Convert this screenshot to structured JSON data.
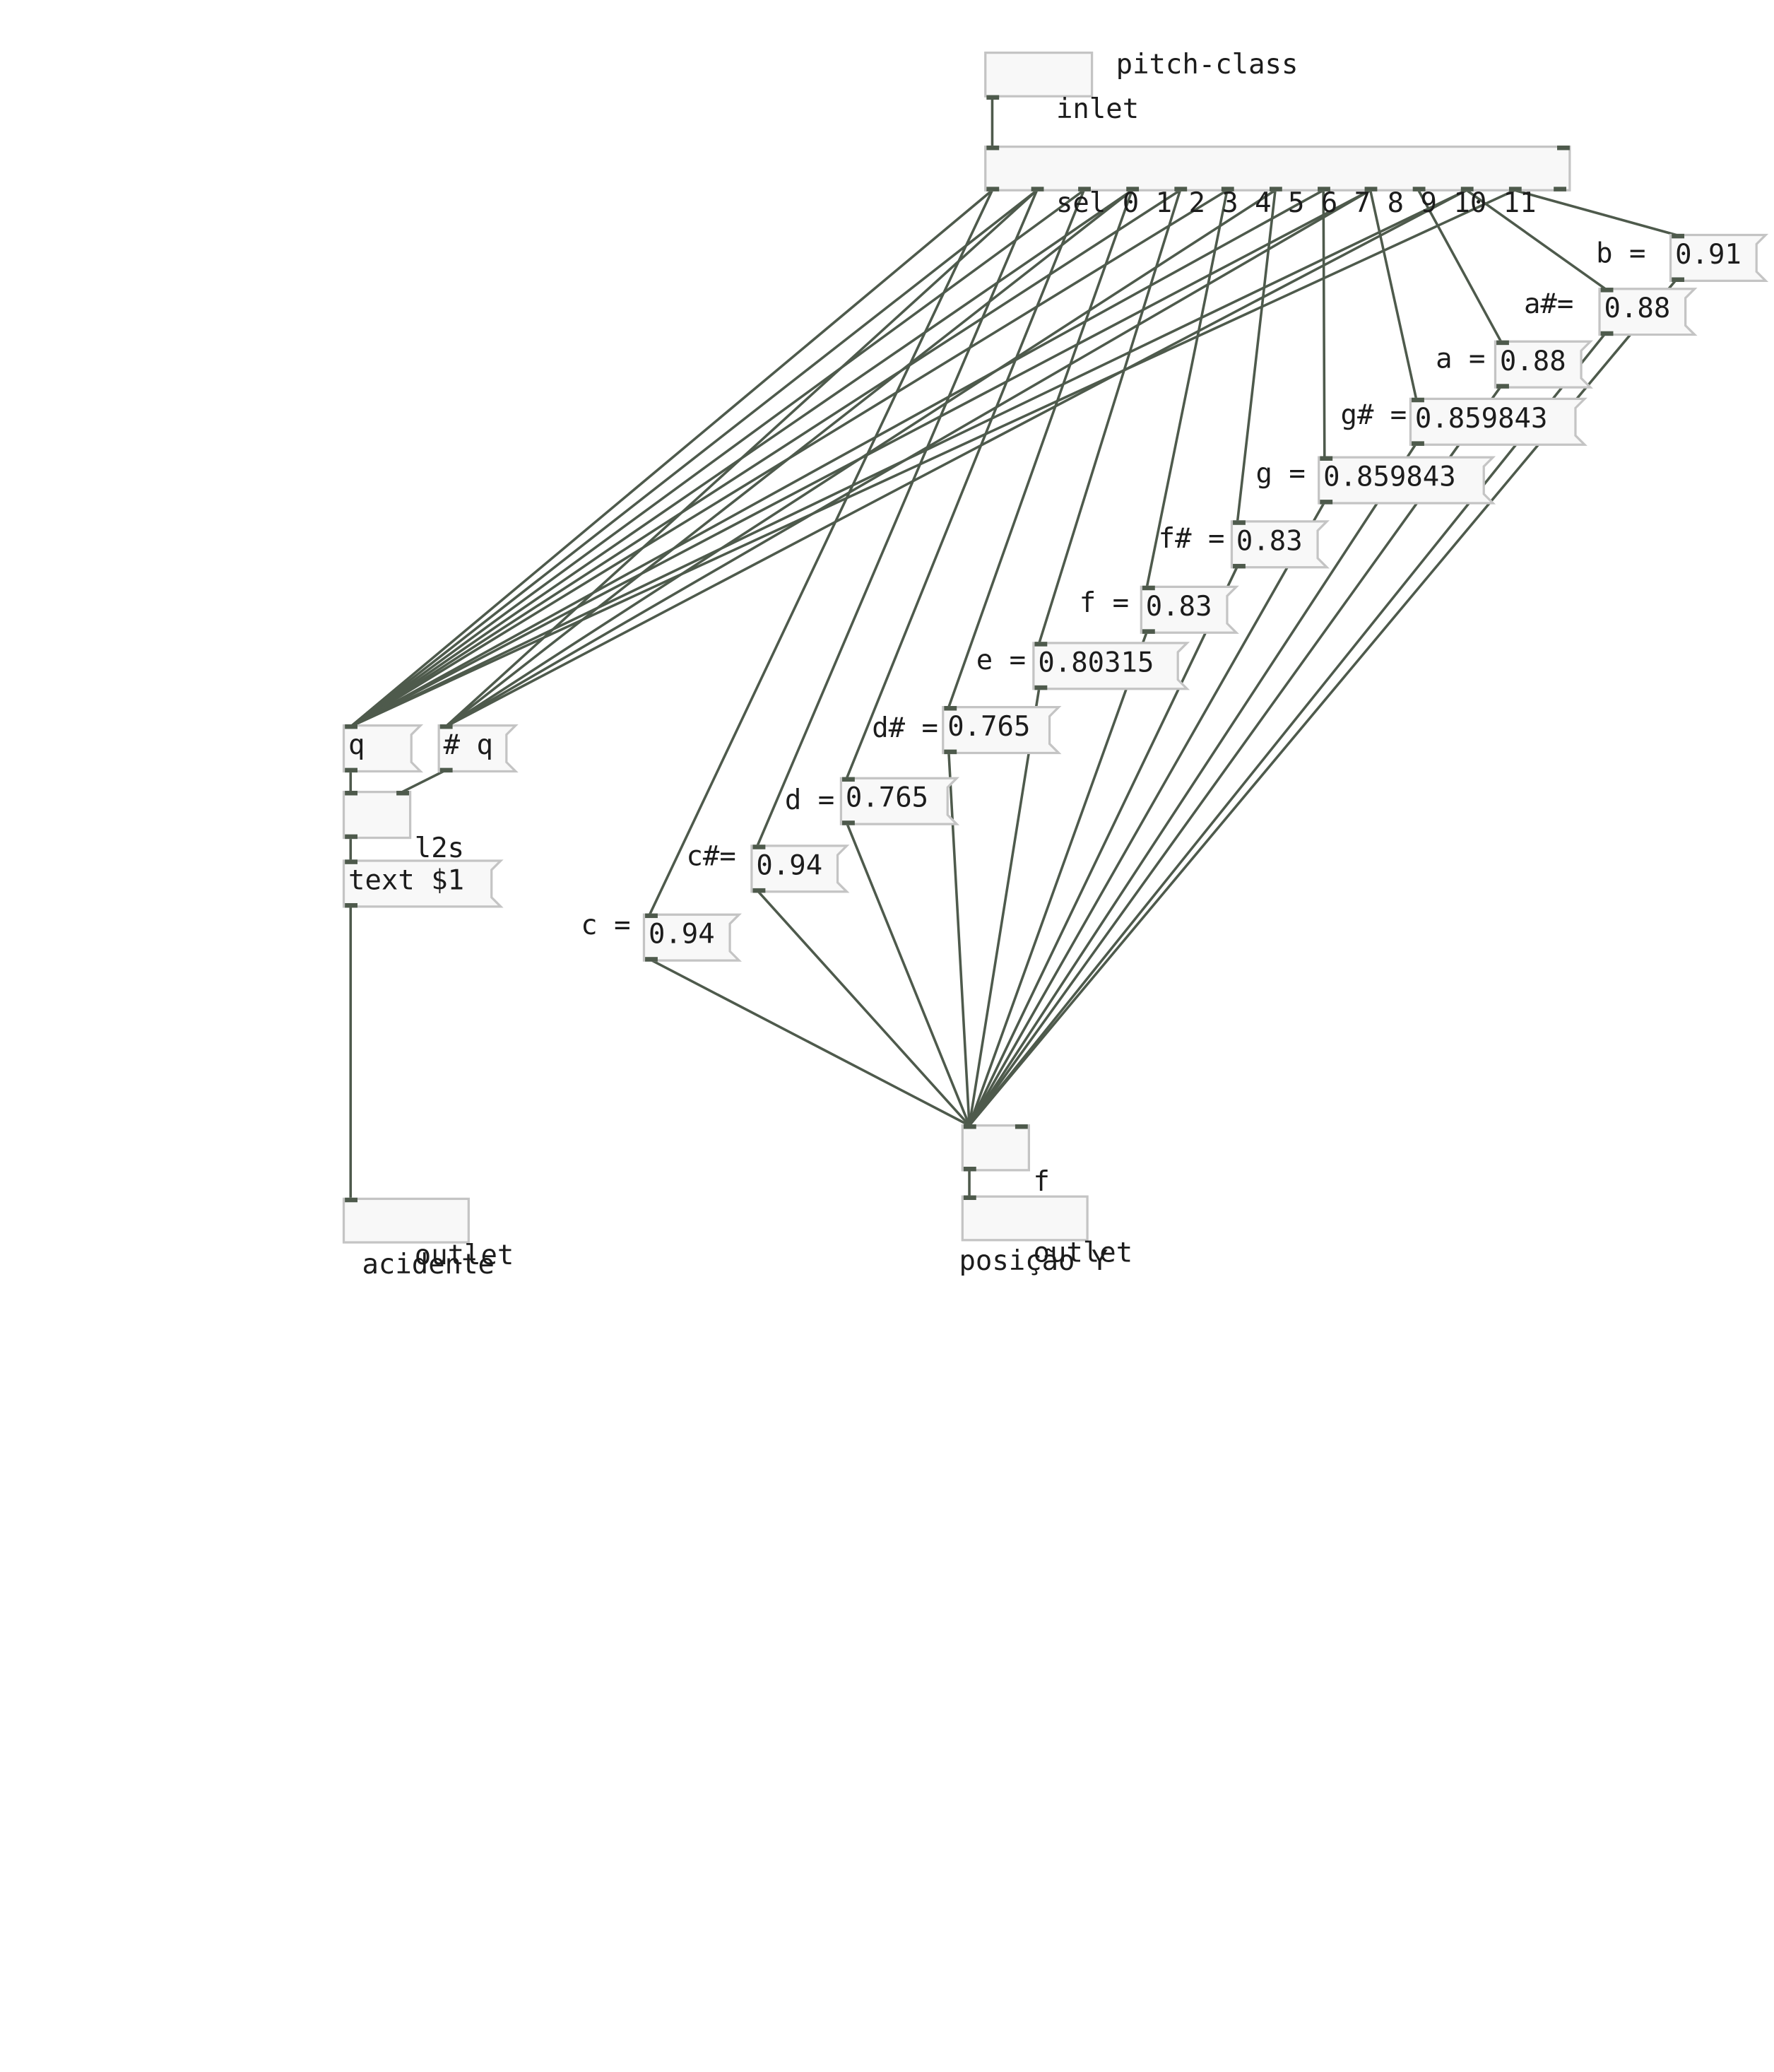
{
  "objects": {
    "inlet": "inlet",
    "sel": "sel 0 1 2 3 4 5 6 7 8 9 10 11",
    "q": "q",
    "hash_q": "# q",
    "l2s": "l2s",
    "text": "text $1",
    "outlet_left": "outlet",
    "float": "f",
    "outlet_right": "outlet"
  },
  "comments": {
    "pitch_class": "pitch-class",
    "acidente": "acidente",
    "posicao_y": "posição Y"
  },
  "notes": [
    {
      "label": "c =",
      "value": "0.94"
    },
    {
      "label": "c#=",
      "value": "0.94"
    },
    {
      "label": "d =",
      "value": "0.765"
    },
    {
      "label": "d# =",
      "value": "0.765"
    },
    {
      "label": "e =",
      "value": "0.80315"
    },
    {
      "label": "f =",
      "value": "0.83"
    },
    {
      "label": "f# =",
      "value": "0.83"
    },
    {
      "label": "g =",
      "value": "0.859843"
    },
    {
      "label": "g# =",
      "value": "0.859843"
    },
    {
      "label": "a =",
      "value": "0.88"
    },
    {
      "label": "a#=",
      "value": "0.88"
    },
    {
      "label": "b =",
      "value": "0.91"
    }
  ],
  "colors": {
    "wire": "#4e5a4c",
    "box_border": "#c4c4c4",
    "box_fill": "#f8f8f8",
    "text": "#1c1c1c"
  }
}
